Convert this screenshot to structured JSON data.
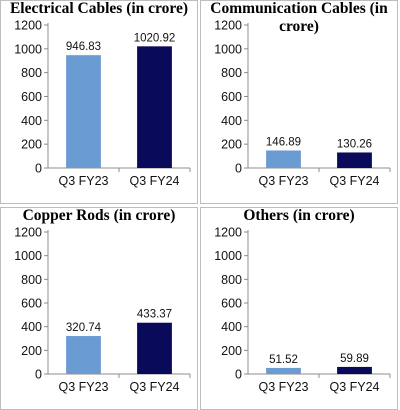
{
  "chart_data": [
    {
      "type": "bar",
      "title": "Electrical Cables (in crore)",
      "categories": [
        "Q3 FY23",
        "Q3 FY24"
      ],
      "values": [
        946.83,
        1020.92
      ],
      "data_labels": [
        "946.83",
        "1020.92"
      ],
      "colors": [
        "#6a9bd2",
        "#0a0a5a"
      ],
      "ylim": [
        0,
        1200
      ],
      "yticks": [
        0,
        200,
        400,
        600,
        800,
        1000,
        1200
      ],
      "grid": false,
      "xlabel": "",
      "ylabel": ""
    },
    {
      "type": "bar",
      "title": "Communication Cables (in crore)",
      "categories": [
        "Q3 FY23",
        "Q3 FY24"
      ],
      "values": [
        146.89,
        130.26
      ],
      "data_labels": [
        "146.89",
        "130.26"
      ],
      "colors": [
        "#6a9bd2",
        "#0a0a5a"
      ],
      "ylim": [
        0,
        1200
      ],
      "yticks": [
        0,
        200,
        400,
        600,
        800,
        1000,
        1200
      ],
      "grid": false,
      "xlabel": "",
      "ylabel": ""
    },
    {
      "type": "bar",
      "title": "Copper Rods (in crore)",
      "categories": [
        "Q3 FY23",
        "Q3 FY24"
      ],
      "values": [
        320.74,
        433.37
      ],
      "data_labels": [
        "320.74",
        "433.37"
      ],
      "colors": [
        "#6a9bd2",
        "#0a0a5a"
      ],
      "ylim": [
        0,
        1200
      ],
      "yticks": [
        0,
        200,
        400,
        600,
        800,
        1000,
        1200
      ],
      "grid": false,
      "xlabel": "",
      "ylabel": ""
    },
    {
      "type": "bar",
      "title": "Others (in crore)",
      "categories": [
        "Q3 FY23",
        "Q3 FY24"
      ],
      "values": [
        51.52,
        59.89
      ],
      "data_labels": [
        "51.52",
        "59.89"
      ],
      "colors": [
        "#6a9bd2",
        "#0a0a5a"
      ],
      "ylim": [
        0,
        1200
      ],
      "yticks": [
        0,
        200,
        400,
        600,
        800,
        1000,
        1200
      ],
      "grid": false,
      "xlabel": "",
      "ylabel": ""
    }
  ]
}
